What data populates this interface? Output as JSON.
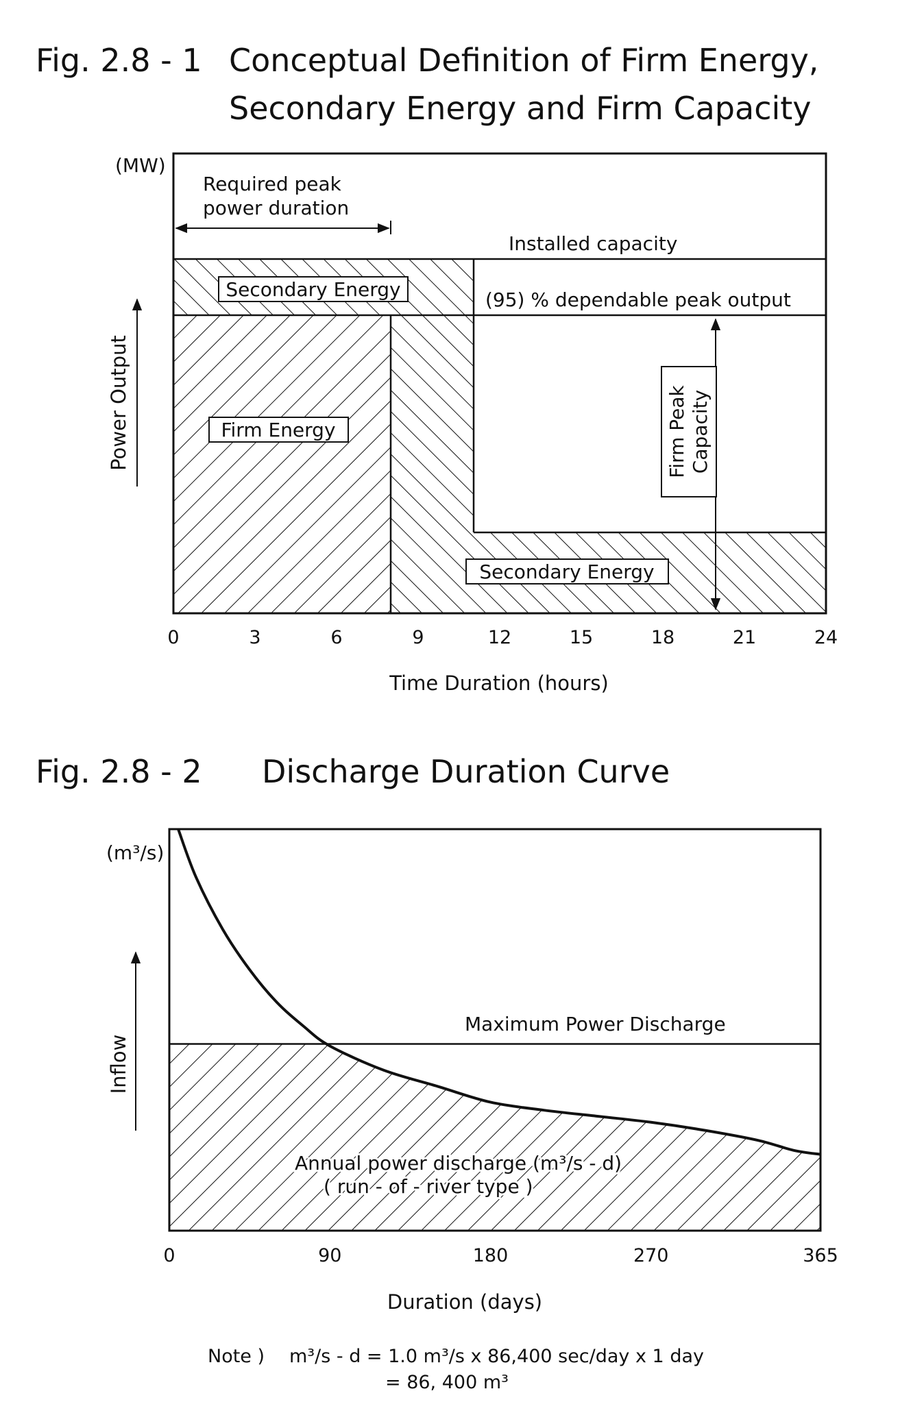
{
  "fig1": {
    "number": "Fig. 2.8 - 1",
    "title_line1": "Conceptual Definition of Firm Energy,",
    "title_line2": "Secondary Energy and Firm Capacity",
    "unit": "(MW)",
    "required_peak_line1": "Required peak",
    "required_peak_line2": "power duration",
    "installed_capacity": "Installed capacity",
    "dependable_output": "(95) % dependable peak output",
    "secondary_top": "Secondary Energy",
    "secondary_bottom": "Secondary Energy",
    "firm_energy": "Firm Energy",
    "firm_peak_line1": "Firm Peak",
    "firm_peak_line2": "Capacity",
    "ylabel": "Power Output",
    "xlabel": "Time Duration (hours)"
  },
  "fig2": {
    "number": "Fig. 2.8 - 2",
    "title": "Discharge Duration Curve",
    "unit": "(m³/s)",
    "max_power": "Maximum Power Discharge",
    "annual_line1": "Annual power discharge (m³/s - d)",
    "annual_line2": "( run - of - river type )",
    "ylabel": "Inflow",
    "xlabel": "Duration (days)"
  },
  "note": {
    "label": "Note )",
    "line1": "m³/s - d = 1.0 m³/s x 86,400 sec/day x 1 day",
    "line2": "= 86, 400 m³"
  },
  "chart_data": [
    {
      "type": "area",
      "title": "Conceptual Definition of Firm Energy, Secondary Energy and Firm Capacity",
      "xlabel": "Time Duration (hours)",
      "ylabel": "Power Output",
      "xlim": [
        0,
        24
      ],
      "xticks": [
        0,
        3,
        6,
        9,
        12,
        15,
        18,
        21,
        24
      ],
      "ylim": [
        0,
        1
      ],
      "grid": false,
      "series": [
        {
          "name": "Firm Energy",
          "x": [
            0,
            8
          ],
          "y": [
            0.85,
            0.85
          ]
        },
        {
          "name": "Secondary Energy",
          "x": [
            0,
            11,
            11,
            24
          ],
          "y": [
            1.0,
            1.0,
            0.23,
            0.23
          ]
        }
      ],
      "reference_lines": [
        {
          "name": "Installed capacity",
          "y": 1.0
        },
        {
          "name": "(95) % dependable peak output",
          "y": 0.85
        }
      ],
      "annotations": [
        {
          "text": "Required peak power duration",
          "x": [
            0,
            8
          ]
        },
        {
          "text": "Firm Peak Capacity",
          "x": 20
        }
      ]
    },
    {
      "type": "area",
      "title": "Discharge Duration Curve",
      "xlabel": "Duration (days)",
      "ylabel": "Inflow",
      "xlim": [
        0,
        365
      ],
      "xticks": [
        0,
        90,
        180,
        270,
        365
      ],
      "ylim": [
        0,
        1
      ],
      "grid": false,
      "series": [
        {
          "name": "Discharge duration",
          "x": [
            5,
            15,
            30,
            45,
            60,
            75,
            90,
            120,
            150,
            180,
            210,
            240,
            270,
            300,
            330,
            350,
            365
          ],
          "y": [
            1.0,
            0.88,
            0.75,
            0.65,
            0.57,
            0.51,
            0.46,
            0.4,
            0.36,
            0.32,
            0.3,
            0.285,
            0.27,
            0.25,
            0.225,
            0.2,
            0.19
          ]
        }
      ],
      "reference_lines": [
        {
          "name": "Maximum Power Discharge",
          "y": 0.465
        }
      ],
      "filled_region": "Annual power discharge (m³/s - d) ( run - of - river type )"
    }
  ]
}
